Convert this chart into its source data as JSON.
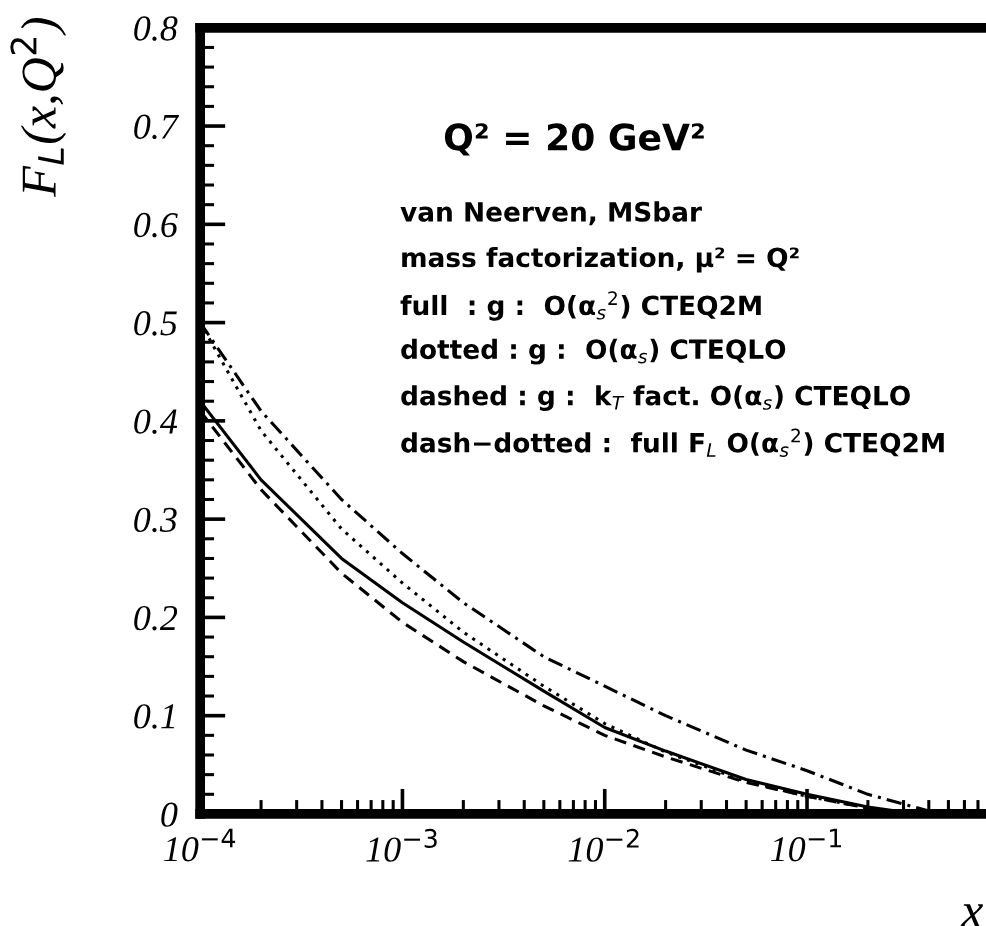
{
  "chart_data": {
    "type": "line",
    "ylabel": "F$_{L}$(x,Q$^{2}$)",
    "xlabel": "x",
    "annotations": [
      "Q² = 20 GeV²",
      "van Neerven, MSbar",
      "mass factorization, μ² = Q²",
      "full  : g :  O(α$_{s}$$^{2}$) CTEQ2M",
      "dotted : g :  O(α$_{s}$) CTEQLO",
      "dashed : g :  k$_{T}$ fact. O(α$_{s}$) CTEQLO",
      "dash−dotted :  full F$_{L}$ O(α$_{s}$$^{2}$) CTEQ2M"
    ],
    "log": "x",
    "xlim": [
      0.0001,
      0.75
    ],
    "xticks": [
      {
        "value": 0.0001,
        "label": "10$^{−4}$"
      },
      {
        "value": 0.001,
        "label": "10$^{−3}$"
      },
      {
        "value": 0.01,
        "label": "10$^{−2}$"
      },
      {
        "value": 0.1,
        "label": "10$^{−1}$"
      }
    ],
    "ylim": [
      0,
      0.8
    ],
    "yticks": [
      0,
      0.1,
      0.2,
      0.3,
      0.4,
      0.5,
      0.6,
      0.7,
      0.8
    ],
    "grid": false,
    "legend": false,
    "marker": "none",
    "series": [
      {
        "color": "#000000",
        "line_style": "solid",
        "x": [
          0.0001,
          0.0002,
          0.0005,
          0.001,
          0.002,
          0.005,
          0.01,
          0.02,
          0.05,
          0.1,
          0.2,
          0.3
        ],
        "values": [
          0.42,
          0.34,
          0.26,
          0.215,
          0.175,
          0.125,
          0.088,
          0.064,
          0.035,
          0.02,
          0.007,
          0.002
        ]
      },
      {
        "color": "#000000",
        "line_style": "dotted",
        "x": [
          0.0001,
          0.0002,
          0.0005,
          0.001,
          0.002,
          0.005,
          0.01,
          0.02,
          0.05,
          0.1,
          0.2,
          0.3
        ],
        "values": [
          0.5,
          0.39,
          0.29,
          0.235,
          0.185,
          0.13,
          0.092,
          0.063,
          0.033,
          0.018,
          0.006,
          0.001
        ]
      },
      {
        "color": "#000000",
        "line_style": "dashed",
        "x": [
          0.0001,
          0.0002,
          0.0005,
          0.001,
          0.002,
          0.005,
          0.01,
          0.02,
          0.05,
          0.1,
          0.2,
          0.3
        ],
        "values": [
          0.41,
          0.33,
          0.245,
          0.195,
          0.155,
          0.11,
          0.08,
          0.058,
          0.032,
          0.018,
          0.006,
          0.001
        ]
      },
      {
        "color": "#000000",
        "line_style": "dashdot",
        "x": [
          0.0001,
          0.0002,
          0.0005,
          0.001,
          0.002,
          0.005,
          0.01,
          0.02,
          0.05,
          0.1,
          0.2,
          0.4,
          0.5
        ],
        "values": [
          0.5,
          0.41,
          0.32,
          0.265,
          0.215,
          0.16,
          0.13,
          0.1,
          0.065,
          0.044,
          0.02,
          0.003,
          0.0
        ]
      }
    ]
  }
}
